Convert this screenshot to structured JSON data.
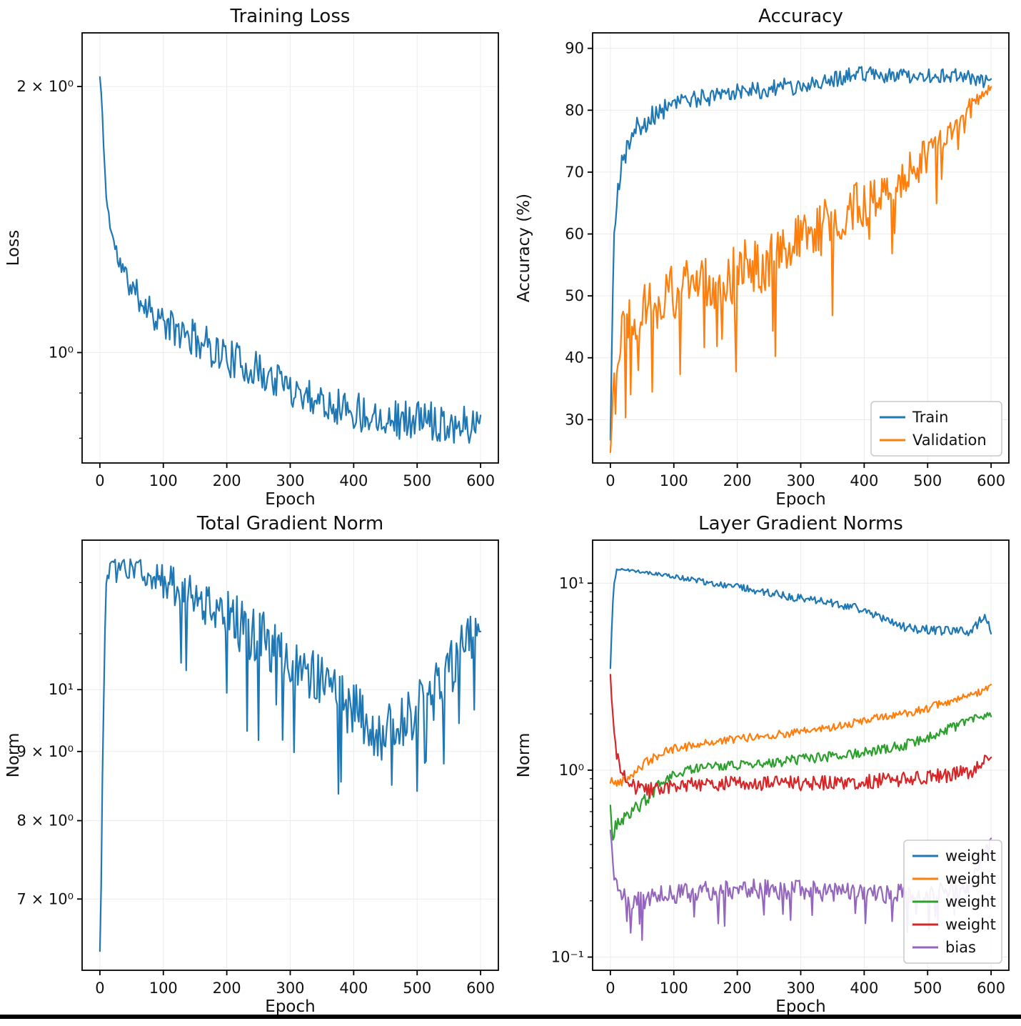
{
  "figure": {
    "background": "#ffffff",
    "bottom_bar_color": "#000000"
  },
  "chart_data": [
    {
      "id": "training-loss",
      "type": "line",
      "title": "Training Loss",
      "xlabel": "Epoch",
      "ylabel": "Loss",
      "xscale": "linear",
      "yscale": "log",
      "xlim": [
        -28,
        628
      ],
      "ylim": [
        0.75,
        2.3
      ],
      "xticks": [
        0,
        100,
        200,
        300,
        400,
        500,
        600
      ],
      "yticks": [
        {
          "v": 1,
          "label": "10⁰"
        },
        {
          "v": 2,
          "label": "2 × 10⁰"
        }
      ],
      "yminor": [
        0.8,
        0.9
      ],
      "grid": true,
      "legend": null,
      "series": [
        {
          "name": "loss",
          "color": "#1f77b4",
          "spiky": false,
          "seed": 11,
          "noise_mode": "relative",
          "x": [
            0,
            2,
            4,
            6,
            8,
            10,
            14,
            20,
            28,
            40,
            55,
            75,
            100,
            130,
            160,
            200,
            240,
            280,
            320,
            360,
            400,
            440,
            480,
            520,
            560,
            600
          ],
          "y": [
            2.05,
            1.97,
            1.85,
            1.72,
            1.6,
            1.5,
            1.43,
            1.35,
            1.28,
            1.22,
            1.17,
            1.13,
            1.08,
            1.05,
            1.03,
            0.99,
            0.96,
            0.93,
            0.9,
            0.88,
            0.86,
            0.85,
            0.84,
            0.84,
            0.83,
            0.83
          ],
          "noise": [
            0.003,
            0.005,
            0.008,
            0.01,
            0.013,
            0.016,
            0.02,
            0.025,
            0.03,
            0.035,
            0.04,
            0.042,
            0.045,
            0.048,
            0.05,
            0.05,
            0.05,
            0.05,
            0.05,
            0.05,
            0.052,
            0.052,
            0.052,
            0.052,
            0.05,
            0.05
          ]
        }
      ]
    },
    {
      "id": "accuracy",
      "type": "line",
      "title": "Accuracy",
      "xlabel": "Epoch",
      "ylabel": "Accuracy (%)",
      "xscale": "linear",
      "yscale": "linear",
      "xlim": [
        -28,
        628
      ],
      "ylim": [
        23,
        92.5
      ],
      "xticks": [
        0,
        100,
        200,
        300,
        400,
        500,
        600
      ],
      "yticks": [
        {
          "v": 30,
          "label": "30"
        },
        {
          "v": 40,
          "label": "40"
        },
        {
          "v": 50,
          "label": "50"
        },
        {
          "v": 60,
          "label": "60"
        },
        {
          "v": 70,
          "label": "70"
        },
        {
          "v": 80,
          "label": "80"
        },
        {
          "v": 90,
          "label": "90"
        }
      ],
      "yminor": [],
      "grid": true,
      "legend": {
        "position": "lower right",
        "entries": [
          {
            "label": "Train",
            "color": "#1f77b4"
          },
          {
            "label": "Validation",
            "color": "#ff7f0e"
          }
        ]
      },
      "series": [
        {
          "name": "train",
          "color": "#1f77b4",
          "spiky": false,
          "seed": 21,
          "noise_mode": "absolute",
          "x": [
            0,
            3,
            6,
            10,
            15,
            20,
            30,
            40,
            60,
            80,
            100,
            150,
            200,
            250,
            300,
            350,
            400,
            450,
            500,
            550,
            580,
            600
          ],
          "y": [
            27,
            48,
            58,
            66,
            70,
            72,
            75,
            77,
            78.5,
            80,
            81,
            82,
            83,
            83.5,
            84,
            85,
            86,
            85.5,
            85.5,
            85.5,
            85,
            84.5
          ],
          "noise": [
            2,
            3,
            3,
            2.5,
            2.5,
            2.2,
            2,
            2,
            1.8,
            1.8,
            1.6,
            1.5,
            1.5,
            1.5,
            1.4,
            1.4,
            1.3,
            1.3,
            1.2,
            1.2,
            1.2,
            1.0
          ]
        },
        {
          "name": "validation",
          "color": "#ff7f0e",
          "spiky": true,
          "seed": 22,
          "noise_mode": "absolute",
          "x": [
            0,
            3,
            6,
            10,
            15,
            20,
            30,
            40,
            60,
            80,
            100,
            150,
            200,
            250,
            300,
            350,
            400,
            450,
            500,
            550,
            580,
            600
          ],
          "y": [
            24,
            34,
            38,
            41,
            43,
            45,
            46.5,
            47.5,
            48.5,
            49.5,
            50.5,
            52,
            54,
            56,
            58.5,
            62,
            65,
            68.5,
            72.5,
            78,
            82,
            83.5
          ],
          "noise": [
            3,
            4,
            4.5,
            4.5,
            4.5,
            4.5,
            4.5,
            4.5,
            4.5,
            4.5,
            4.5,
            4.8,
            5,
            5,
            5,
            4.5,
            4,
            3.5,
            3,
            2,
            1.5,
            1
          ]
        }
      ]
    },
    {
      "id": "total-gradient-norm",
      "type": "line",
      "title": "Total Gradient Norm",
      "xlabel": "Epoch",
      "ylabel": "Norm",
      "xscale": "linear",
      "yscale": "log",
      "xlim": [
        -28,
        628
      ],
      "ylim": [
        6.2,
        12.9
      ],
      "xticks": [
        0,
        100,
        200,
        300,
        400,
        500,
        600
      ],
      "yticks": [
        {
          "v": 7,
          "label": "7 × 10⁰"
        },
        {
          "v": 8,
          "label": "8 × 10⁰"
        },
        {
          "v": 9,
          "label": "9 × 10⁰"
        },
        {
          "v": 10,
          "label": "10¹"
        }
      ],
      "yminor": [
        11,
        12
      ],
      "grid": true,
      "legend": null,
      "series": [
        {
          "name": "total-norm",
          "color": "#1f77b4",
          "spiky": true,
          "seed": 31,
          "noise_mode": "relative",
          "x": [
            0,
            2,
            4,
            7,
            10,
            15,
            25,
            50,
            80,
            110,
            140,
            170,
            200,
            230,
            260,
            290,
            320,
            350,
            380,
            410,
            430,
            450,
            470,
            500,
            530,
            560,
            600
          ],
          "y": [
            6.4,
            7.2,
            8.6,
            10.5,
            12.0,
            12.35,
            12.35,
            12.3,
            12.15,
            12.0,
            11.8,
            11.6,
            11.35,
            11.1,
            10.9,
            10.6,
            10.4,
            10.15,
            9.9,
            9.55,
            9.35,
            9.3,
            9.4,
            9.7,
            10.0,
            10.5,
            11.25
          ],
          "noise": [
            0.002,
            0.004,
            0.008,
            0.008,
            0.006,
            0.008,
            0.012,
            0.02,
            0.028,
            0.033,
            0.038,
            0.042,
            0.045,
            0.048,
            0.05,
            0.05,
            0.05,
            0.05,
            0.05,
            0.05,
            0.048,
            0.048,
            0.048,
            0.048,
            0.048,
            0.046,
            0.04
          ]
        }
      ]
    },
    {
      "id": "layer-gradient-norms",
      "type": "line",
      "title": "Layer Gradient Norms",
      "xlabel": "Epoch",
      "ylabel": "Norm",
      "xscale": "linear",
      "yscale": "log",
      "xlim": [
        -28,
        628
      ],
      "ylim": [
        0.085,
        17
      ],
      "xticks": [
        0,
        100,
        200,
        300,
        400,
        500,
        600
      ],
      "yticks": [
        {
          "v": 0.1,
          "label": "10⁻¹"
        },
        {
          "v": 1,
          "label": "10⁰"
        },
        {
          "v": 10,
          "label": "10¹"
        }
      ],
      "yminor": [
        0.2,
        0.3,
        0.4,
        0.5,
        0.6,
        0.7,
        0.8,
        0.9,
        2,
        3,
        4,
        5,
        6,
        7,
        8,
        9
      ],
      "grid": true,
      "legend": {
        "position": "lower right",
        "entries": [
          {
            "label": "weight",
            "color": "#1f77b4"
          },
          {
            "label": "weight",
            "color": "#ff7f0e"
          },
          {
            "label": "weight",
            "color": "#2ca02c"
          },
          {
            "label": "weight",
            "color": "#d62728"
          },
          {
            "label": "bias",
            "color": "#9467bd"
          }
        ]
      },
      "series": [
        {
          "name": "weight-1",
          "color": "#1f77b4",
          "spiky": false,
          "seed": 41,
          "noise_mode": "relative",
          "x": [
            0,
            2,
            5,
            10,
            20,
            40,
            70,
            100,
            140,
            180,
            220,
            260,
            300,
            340,
            380,
            420,
            460,
            500,
            540,
            570,
            590,
            600
          ],
          "y": [
            3.5,
            5.5,
            9.5,
            11.8,
            11.9,
            11.6,
            11.2,
            10.8,
            10.3,
            9.8,
            9.3,
            8.8,
            8.3,
            7.9,
            7.5,
            6.6,
            5.9,
            5.6,
            5.5,
            5.6,
            6.8,
            5.6
          ],
          "noise": [
            0.004,
            0.006,
            0.008,
            0.01,
            0.012,
            0.02,
            0.025,
            0.03,
            0.035,
            0.04,
            0.045,
            0.048,
            0.05,
            0.052,
            0.055,
            0.058,
            0.06,
            0.06,
            0.06,
            0.06,
            0.07,
            0.05
          ]
        },
        {
          "name": "weight-2",
          "color": "#ff7f0e",
          "spiky": false,
          "seed": 42,
          "noise_mode": "relative",
          "x": [
            0,
            3,
            8,
            15,
            25,
            40,
            60,
            80,
            100,
            140,
            180,
            220,
            260,
            300,
            340,
            380,
            420,
            460,
            500,
            540,
            570,
            600
          ],
          "y": [
            0.85,
            0.9,
            0.84,
            0.87,
            0.9,
            1.0,
            1.12,
            1.22,
            1.3,
            1.38,
            1.44,
            1.5,
            1.55,
            1.6,
            1.68,
            1.78,
            1.9,
            2.0,
            2.15,
            2.35,
            2.5,
            2.85
          ],
          "noise": [
            0.03,
            0.05,
            0.06,
            0.06,
            0.06,
            0.06,
            0.06,
            0.058,
            0.055,
            0.055,
            0.052,
            0.05,
            0.05,
            0.05,
            0.05,
            0.05,
            0.05,
            0.05,
            0.05,
            0.05,
            0.048,
            0.04
          ]
        },
        {
          "name": "weight-3",
          "color": "#2ca02c",
          "spiky": false,
          "seed": 43,
          "noise_mode": "relative",
          "x": [
            0,
            3,
            8,
            15,
            25,
            40,
            60,
            80,
            100,
            140,
            180,
            220,
            260,
            300,
            340,
            380,
            420,
            460,
            500,
            540,
            570,
            600
          ],
          "y": [
            0.6,
            0.45,
            0.5,
            0.52,
            0.56,
            0.62,
            0.72,
            0.85,
            0.95,
            1.02,
            1.05,
            1.08,
            1.1,
            1.15,
            1.18,
            1.22,
            1.28,
            1.35,
            1.5,
            1.7,
            1.85,
            2.0
          ],
          "noise": [
            0.08,
            0.09,
            0.09,
            0.09,
            0.09,
            0.085,
            0.08,
            0.075,
            0.07,
            0.065,
            0.06,
            0.06,
            0.06,
            0.06,
            0.06,
            0.06,
            0.06,
            0.06,
            0.06,
            0.06,
            0.055,
            0.05
          ]
        },
        {
          "name": "weight-4",
          "color": "#d62728",
          "spiky": false,
          "seed": 44,
          "noise_mode": "relative",
          "x": [
            0,
            2,
            5,
            10,
            15,
            25,
            40,
            60,
            80,
            100,
            140,
            180,
            220,
            260,
            300,
            340,
            380,
            420,
            460,
            500,
            540,
            570,
            600
          ],
          "y": [
            3.2,
            2.5,
            1.7,
            1.2,
            1.0,
            0.88,
            0.82,
            0.78,
            0.8,
            0.82,
            0.84,
            0.85,
            0.85,
            0.86,
            0.85,
            0.86,
            0.86,
            0.88,
            0.9,
            0.92,
            0.95,
            1.0,
            1.2
          ],
          "noise": [
            0.02,
            0.05,
            0.08,
            0.1,
            0.1,
            0.1,
            0.1,
            0.1,
            0.095,
            0.09,
            0.09,
            0.09,
            0.09,
            0.09,
            0.09,
            0.09,
            0.09,
            0.09,
            0.09,
            0.09,
            0.09,
            0.09,
            0.08
          ]
        },
        {
          "name": "bias",
          "color": "#9467bd",
          "spiky": true,
          "seed": 45,
          "noise_mode": "relative",
          "x": [
            0,
            3,
            8,
            15,
            25,
            40,
            60,
            80,
            100,
            140,
            180,
            220,
            260,
            300,
            340,
            380,
            420,
            460,
            500,
            540,
            570,
            600
          ],
          "y": [
            0.5,
            0.34,
            0.26,
            0.22,
            0.21,
            0.205,
            0.21,
            0.215,
            0.22,
            0.225,
            0.23,
            0.235,
            0.23,
            0.23,
            0.225,
            0.225,
            0.22,
            0.22,
            0.22,
            0.23,
            0.25,
            0.45
          ],
          "noise": [
            0.05,
            0.1,
            0.12,
            0.13,
            0.13,
            0.13,
            0.13,
            0.13,
            0.125,
            0.12,
            0.12,
            0.12,
            0.12,
            0.12,
            0.12,
            0.12,
            0.12,
            0.12,
            0.12,
            0.12,
            0.11,
            0.05
          ]
        }
      ]
    }
  ]
}
